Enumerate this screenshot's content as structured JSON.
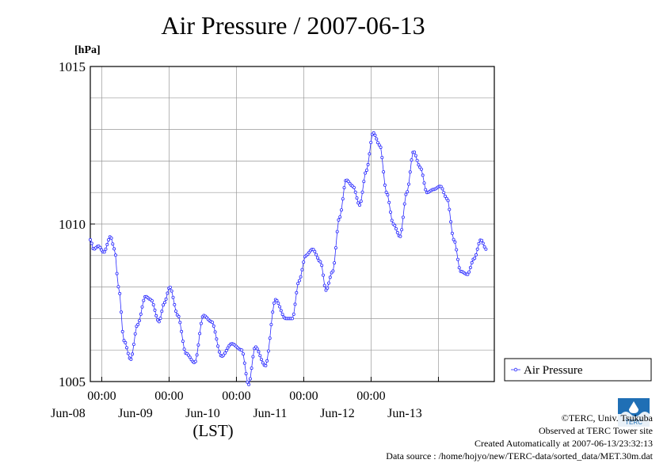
{
  "title": "Air Pressure / 2007-06-13",
  "unit_label": "[hPa]",
  "credits": {
    "copyright": "©TERC, Univ. Tsukuba",
    "observed": "Observed at TERC Tower site",
    "created": "Created Automatically at 2007-06-13/23:32:13",
    "source": "Data source : /home/hojyo/new/TERC-data/sorted_data/MET.30m.dat"
  },
  "logo_text": "TERC",
  "colors": {
    "series": "#2a2aff",
    "grid": "#999999"
  },
  "chart_data": {
    "type": "line",
    "title": "Air Pressure / 2007-06-13",
    "ylabel": "[hPa]",
    "xlabel": "(LST)",
    "ylim": [
      1005,
      1015
    ],
    "yticks": [
      1005,
      1010,
      1015
    ],
    "xlim_days": [
      0,
      6
    ],
    "xtick_time_label": "00:00",
    "xtick_day_labels": [
      "Jun-08",
      "Jun-09",
      "Jun-10",
      "Jun-11",
      "Jun-12",
      "Jun-13"
    ],
    "grid": true,
    "legend_position": "right",
    "series": [
      {
        "name": "Air Pressure",
        "anchors": [
          [
            0.0,
            1009.5
          ],
          [
            0.05,
            1009.2
          ],
          [
            0.12,
            1009.3
          ],
          [
            0.2,
            1009.1
          ],
          [
            0.3,
            1009.6
          ],
          [
            0.36,
            1009.2
          ],
          [
            0.42,
            1008.0
          ],
          [
            0.5,
            1006.3
          ],
          [
            0.6,
            1005.7
          ],
          [
            0.7,
            1006.8
          ],
          [
            0.82,
            1007.7
          ],
          [
            0.9,
            1007.6
          ],
          [
            1.02,
            1006.9
          ],
          [
            1.1,
            1007.5
          ],
          [
            1.18,
            1008.0
          ],
          [
            1.3,
            1007.1
          ],
          [
            1.42,
            1005.9
          ],
          [
            1.55,
            1005.6
          ],
          [
            1.68,
            1007.1
          ],
          [
            1.8,
            1006.9
          ],
          [
            1.95,
            1005.8
          ],
          [
            2.1,
            1006.2
          ],
          [
            2.25,
            1006.0
          ],
          [
            2.35,
            1004.9
          ],
          [
            2.45,
            1006.1
          ],
          [
            2.6,
            1005.5
          ],
          [
            2.75,
            1007.6
          ],
          [
            2.9,
            1007.0
          ],
          [
            3.0,
            1007.0
          ],
          [
            3.1,
            1008.2
          ],
          [
            3.2,
            1009.0
          ],
          [
            3.3,
            1009.2
          ],
          [
            3.42,
            1008.8
          ],
          [
            3.5,
            1007.9
          ],
          [
            3.6,
            1008.5
          ],
          [
            3.7,
            1010.2
          ],
          [
            3.8,
            1011.4
          ],
          [
            3.9,
            1011.2
          ],
          [
            4.0,
            1010.6
          ],
          [
            4.1,
            1011.7
          ],
          [
            4.2,
            1012.9
          ],
          [
            4.3,
            1012.5
          ],
          [
            4.4,
            1011.0
          ],
          [
            4.5,
            1010.0
          ],
          [
            4.6,
            1009.6
          ],
          [
            4.7,
            1011.0
          ],
          [
            4.8,
            1012.3
          ],
          [
            4.9,
            1011.8
          ],
          [
            5.0,
            1011.0
          ],
          [
            5.1,
            1011.1
          ],
          [
            5.2,
            1011.2
          ],
          [
            5.3,
            1010.8
          ],
          [
            5.4,
            1009.5
          ],
          [
            5.5,
            1008.5
          ],
          [
            5.6,
            1008.4
          ],
          [
            5.7,
            1008.9
          ],
          [
            5.8,
            1009.5
          ],
          [
            5.88,
            1009.2
          ]
        ]
      }
    ]
  }
}
